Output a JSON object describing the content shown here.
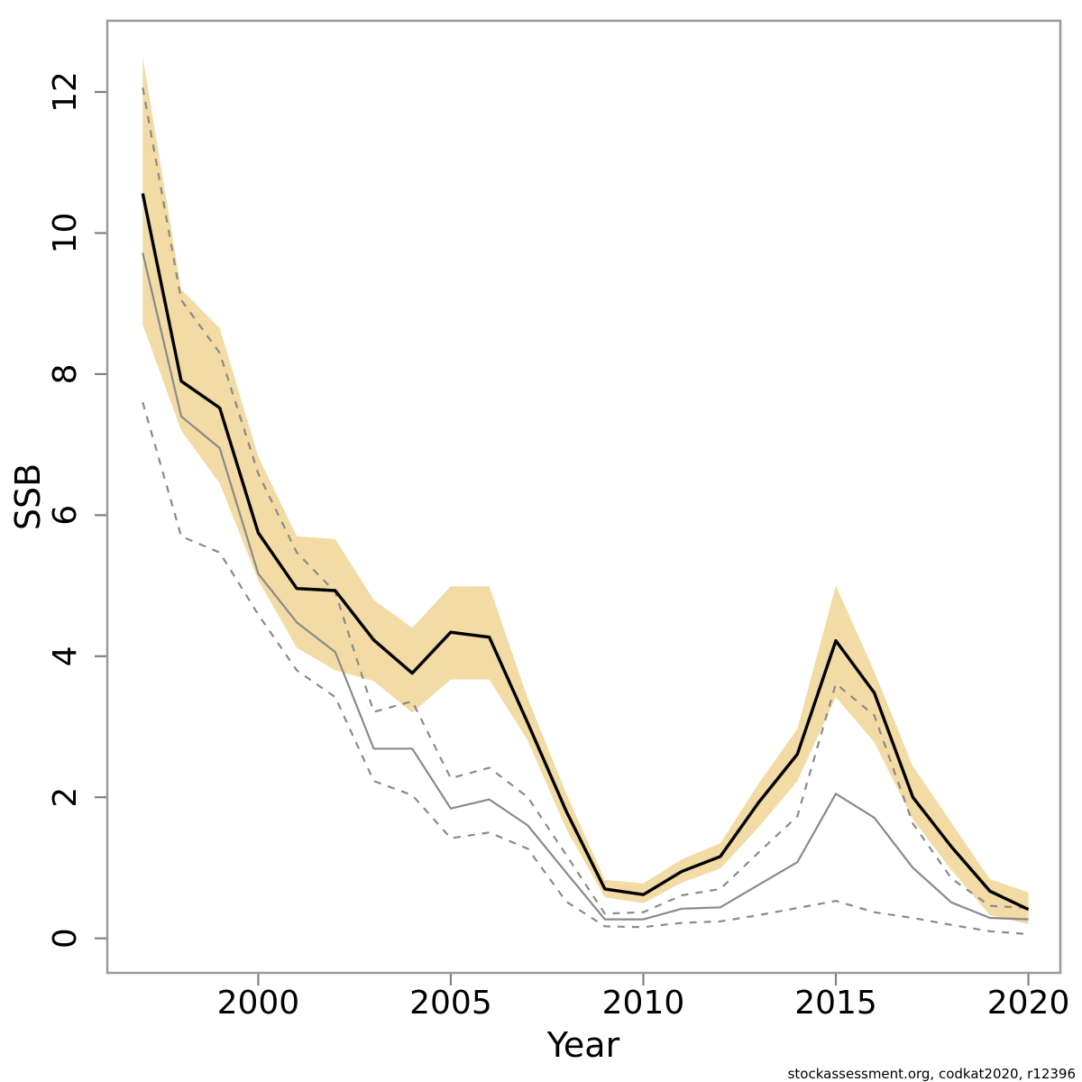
{
  "page": {
    "background": "#ffffff"
  },
  "colors": {
    "band": "#F2DBA5",
    "estimate_line": "#000000",
    "previous_line": "#8a8a8a",
    "dashed_ci_line": "#8a8a8a",
    "plot_border": "#9a9a9a",
    "tick": "#808080",
    "text": "#000000"
  },
  "chart_data": {
    "type": "line",
    "title": "",
    "x_label": "Year",
    "y_label": "SSB",
    "footnote": "stockassessment.org, codkat2020, r12396",
    "grid": false,
    "legend": "none",
    "x": [
      1997,
      1998,
      1999,
      2000,
      2001,
      2002,
      2003,
      2004,
      2005,
      2006,
      2007,
      2008,
      2009,
      2010,
      2011,
      2012,
      2013,
      2014,
      2015,
      2016,
      2017,
      2018,
      2019,
      2020
    ],
    "xlim": [
      1996.08,
      2020.83
    ],
    "ylim": [
      -0.49,
      13.01
    ],
    "x_ticks": [
      2000,
      2005,
      2010,
      2015,
      2020
    ],
    "y_ticks": [
      0,
      2,
      4,
      6,
      8,
      10,
      12
    ],
    "band": {
      "name": "ssb-confidence-band",
      "upper": [
        12.5,
        9.2,
        8.65,
        6.83,
        5.7,
        5.66,
        4.8,
        4.4,
        4.99,
        4.99,
        3.4,
        2.05,
        0.83,
        0.78,
        1.12,
        1.35,
        2.2,
        2.97,
        5.0,
        3.78,
        2.44,
        1.64,
        0.84,
        0.65
      ],
      "lower": [
        8.7,
        7.2,
        6.45,
        5.08,
        4.12,
        3.8,
        3.65,
        3.2,
        3.67,
        3.67,
        2.8,
        1.55,
        0.58,
        0.5,
        0.79,
        0.99,
        1.58,
        2.23,
        3.42,
        2.78,
        1.69,
        0.97,
        0.33,
        0.2
      ]
    },
    "series": [
      {
        "name": "ssb-estimate-current",
        "color": "#000000",
        "width": 3.4,
        "dash": "",
        "values": [
          10.56,
          7.9,
          7.52,
          5.75,
          4.96,
          4.93,
          4.23,
          3.76,
          4.34,
          4.27,
          3.05,
          1.8,
          0.7,
          0.62,
          0.95,
          1.16,
          1.93,
          2.61,
          4.22,
          3.48,
          2.0,
          1.3,
          0.67,
          0.41
        ]
      },
      {
        "name": "ssb-estimate-previous",
        "color": "#8a8a8a",
        "width": 2.2,
        "dash": "",
        "values": [
          9.72,
          7.4,
          6.95,
          5.17,
          4.48,
          4.06,
          2.69,
          2.69,
          1.84,
          1.97,
          1.6,
          0.93,
          0.27,
          0.27,
          0.42,
          0.44,
          0.76,
          1.08,
          2.05,
          1.71,
          1.0,
          0.51,
          0.29,
          0.27
        ]
      },
      {
        "name": "previous-ci-upper",
        "color": "#8a8a8a",
        "width": 2.2,
        "dash": "8,8",
        "values": [
          12.06,
          9.05,
          8.3,
          6.59,
          5.47,
          4.91,
          3.21,
          3.36,
          2.27,
          2.42,
          2.0,
          1.18,
          0.35,
          0.37,
          0.61,
          0.7,
          1.22,
          1.73,
          3.61,
          3.16,
          1.63,
          0.85,
          0.46,
          0.43
        ]
      },
      {
        "name": "previous-ci-lower",
        "color": "#8a8a8a",
        "width": 2.2,
        "dash": "8,8",
        "values": [
          7.6,
          5.7,
          5.47,
          4.59,
          3.8,
          3.42,
          2.23,
          2.03,
          1.42,
          1.5,
          1.27,
          0.52,
          0.17,
          0.16,
          0.22,
          0.24,
          0.33,
          0.43,
          0.53,
          0.37,
          0.29,
          0.19,
          0.1,
          0.06
        ]
      }
    ]
  }
}
